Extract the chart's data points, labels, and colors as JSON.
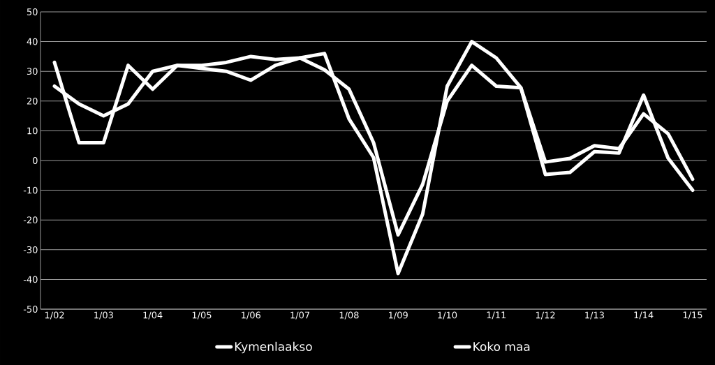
{
  "chart_data": {
    "type": "line",
    "categories": [
      "1/02",
      null,
      "1/03",
      null,
      "1/04",
      null,
      "1/05",
      null,
      "1/06",
      null,
      "1/07",
      null,
      "1/08",
      null,
      "1/09",
      null,
      "1/10",
      null,
      "1/11",
      null,
      "1/12",
      null,
      "1/13",
      null,
      "1/14",
      null,
      "1/15"
    ],
    "series": [
      {
        "name": "Kymenlaakso",
        "color": "#ffffff",
        "values": [
          33,
          6,
          6,
          32,
          24,
          32,
          31,
          30,
          27,
          32,
          34.5,
          36,
          14,
          1,
          -38,
          -18,
          25,
          40,
          34.5,
          24.5,
          -4.7,
          -4,
          3,
          2.5,
          22,
          0.8,
          -10
        ]
      },
      {
        "name": "Koko maa",
        "color": "#ffffff",
        "values": [
          25,
          19,
          15,
          19,
          30,
          32,
          32,
          33,
          35,
          34,
          34.5,
          30.5,
          24,
          6,
          -25,
          -8,
          20,
          32,
          25,
          24.5,
          -0.5,
          0.7,
          5,
          4,
          15.7,
          9,
          -6.3
        ]
      }
    ],
    "ylim": [
      -50,
      50
    ],
    "yticks": [
      -50,
      -40,
      -30,
      -20,
      -10,
      0,
      10,
      20,
      30,
      40,
      50
    ],
    "grid": "y",
    "legend": "bottom",
    "line_style": "solid",
    "marker": "none"
  }
}
